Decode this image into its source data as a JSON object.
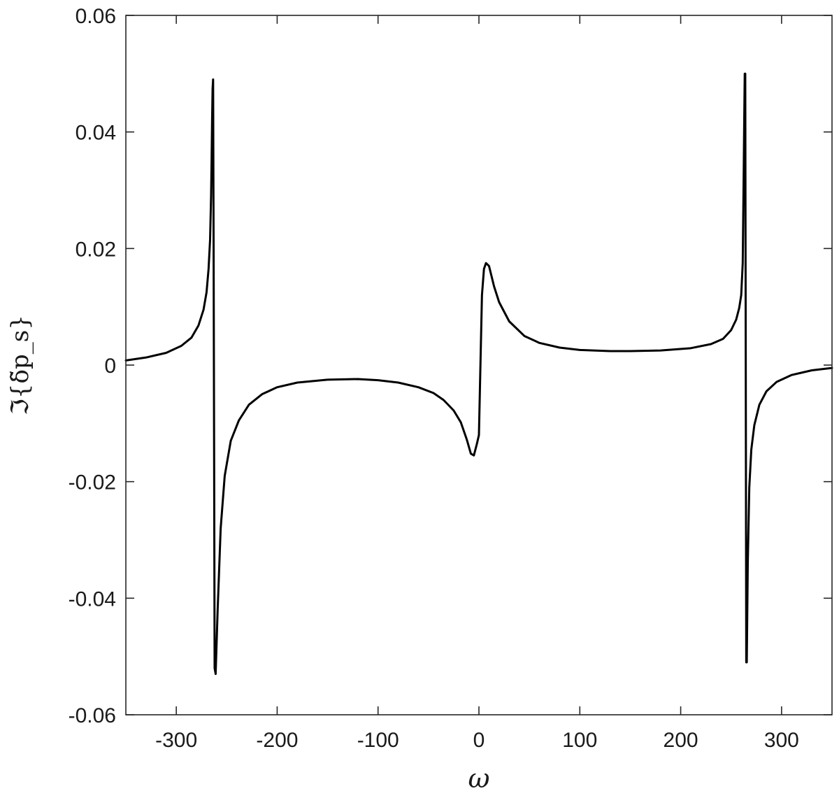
{
  "chart_data": {
    "type": "line",
    "title": "",
    "xlabel": "ω",
    "ylabel": "ℑ{δ̃p_s}",
    "xlim": [
      -350,
      350
    ],
    "ylim": [
      -0.06,
      0.06
    ],
    "xticks": [
      -300,
      -200,
      -100,
      0,
      100,
      200,
      300
    ],
    "yticks": [
      -0.06,
      -0.04,
      -0.02,
      0,
      0.02,
      0.04,
      0.06
    ],
    "xtick_labels": [
      "-300",
      "-200",
      "-100",
      "0",
      "100",
      "200",
      "300"
    ],
    "ytick_labels": [
      "-0.06",
      "-0.04",
      "-0.02",
      "0",
      "0.02",
      "0.04",
      "0.06"
    ],
    "grid": false,
    "line_color": "#000000",
    "series": [
      {
        "x": [
          -350,
          -330,
          -310,
          -295,
          -285,
          -278,
          -273,
          -270,
          -268,
          -266.5,
          -265.5,
          -265,
          -264.5,
          -264,
          -263.5,
          -263,
          -262.5,
          -262,
          -261,
          -259,
          -256,
          -252,
          -246,
          -238,
          -228,
          -215,
          -200,
          -180,
          -150,
          -120,
          -100,
          -80,
          -60,
          -45,
          -35,
          -25,
          -18,
          -12,
          -8,
          -5,
          -2,
          0,
          1,
          3,
          5,
          7,
          10,
          15,
          20,
          30,
          45,
          60,
          80,
          100,
          130,
          150,
          180,
          210,
          230,
          242,
          250,
          255,
          258,
          260,
          261.5,
          262.5,
          263,
          263.5,
          264,
          264.5,
          265,
          265.5,
          266.5,
          268,
          270,
          273,
          278,
          285,
          295,
          310,
          330,
          350
        ],
        "y": [
          0.0008,
          0.0013,
          0.0021,
          0.0033,
          0.0047,
          0.0068,
          0.0095,
          0.0125,
          0.0165,
          0.0215,
          0.029,
          0.035,
          0.042,
          0.0475,
          0.049,
          0.02,
          -0.015,
          -0.052,
          -0.053,
          -0.042,
          -0.028,
          -0.019,
          -0.013,
          -0.0095,
          -0.0068,
          -0.005,
          -0.0038,
          -0.003,
          -0.0025,
          -0.0024,
          -0.0026,
          -0.003,
          -0.0038,
          -0.0048,
          -0.006,
          -0.0078,
          -0.0098,
          -0.0128,
          -0.0152,
          -0.0155,
          -0.0135,
          -0.012,
          -0.004,
          0.012,
          0.0165,
          0.0175,
          0.017,
          0.0135,
          0.0108,
          0.0075,
          0.005,
          0.0038,
          0.003,
          0.0026,
          0.0024,
          0.0024,
          0.0025,
          0.0029,
          0.0036,
          0.0045,
          0.006,
          0.0078,
          0.0098,
          0.012,
          0.0175,
          0.0335,
          0.042,
          0.05,
          0.05,
          0.0,
          -0.051,
          -0.051,
          -0.034,
          -0.021,
          -0.0145,
          -0.0103,
          -0.0068,
          -0.0045,
          -0.0029,
          -0.0017,
          -0.0009,
          -0.0005
        ]
      }
    ]
  }
}
